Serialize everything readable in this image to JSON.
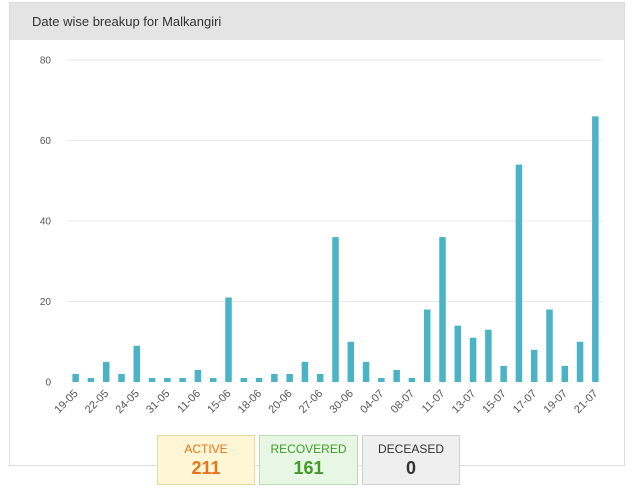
{
  "panel": {
    "title": "Date wise breakup for Malkangiri"
  },
  "colors": {
    "bar": "#4ab3c5",
    "active": "#e8731a",
    "recovered": "#3f9a27",
    "deceased": "#333333"
  },
  "chart_data": {
    "type": "bar",
    "title": "Date wise breakup for Malkangiri",
    "xlabel": "",
    "ylabel": "",
    "ylim": [
      0,
      80
    ],
    "yticks": [
      0,
      20,
      40,
      60,
      80
    ],
    "grid": true,
    "tick_labels": [
      "19-05",
      "22-05",
      "24-05",
      "31-05",
      "11-06",
      "15-06",
      "18-06",
      "20-06",
      "27-06",
      "30-06",
      "04-07",
      "08-07",
      "11-07",
      "13-07",
      "15-07",
      "17-07",
      "19-07",
      "21-07"
    ],
    "tick_label_bar_index": [
      0,
      2,
      4,
      6,
      8,
      10,
      12,
      14,
      16,
      18,
      20,
      22,
      24,
      26,
      28,
      30,
      32,
      34
    ],
    "values": [
      2,
      1,
      5,
      2,
      9,
      1,
      1,
      1,
      3,
      1,
      21,
      1,
      1,
      2,
      2,
      5,
      2,
      36,
      10,
      5,
      1,
      3,
      1,
      18,
      36,
      14,
      11,
      13,
      4,
      54,
      8,
      18,
      4,
      10,
      66
    ]
  },
  "stats": {
    "active": {
      "label": "ACTIVE",
      "value": "211"
    },
    "recovered": {
      "label": "RECOVERED",
      "value": "161"
    },
    "deceased": {
      "label": "DECEASED",
      "value": "0"
    }
  }
}
